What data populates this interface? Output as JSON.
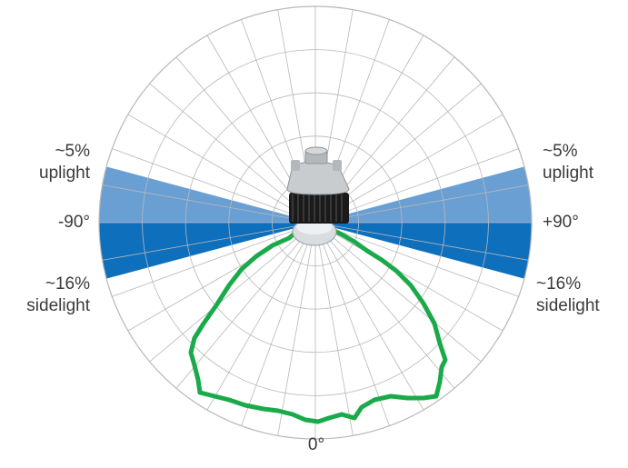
{
  "labels": {
    "uplight_pct": "~5%",
    "uplight_word": "uplight",
    "sidelight_pct": "~16%",
    "sidelight_word": "sidelight",
    "neg90": "-90°",
    "pos90": "+90°",
    "zero": "0°"
  },
  "colors": {
    "uplight_band": "#6a9fd4",
    "sidelight_band": "#0e6fbd",
    "grid": "#b8b8b8",
    "curve": "#1aaa4a"
  },
  "fixture_icon": "high-bay-led-fixture-icon"
}
